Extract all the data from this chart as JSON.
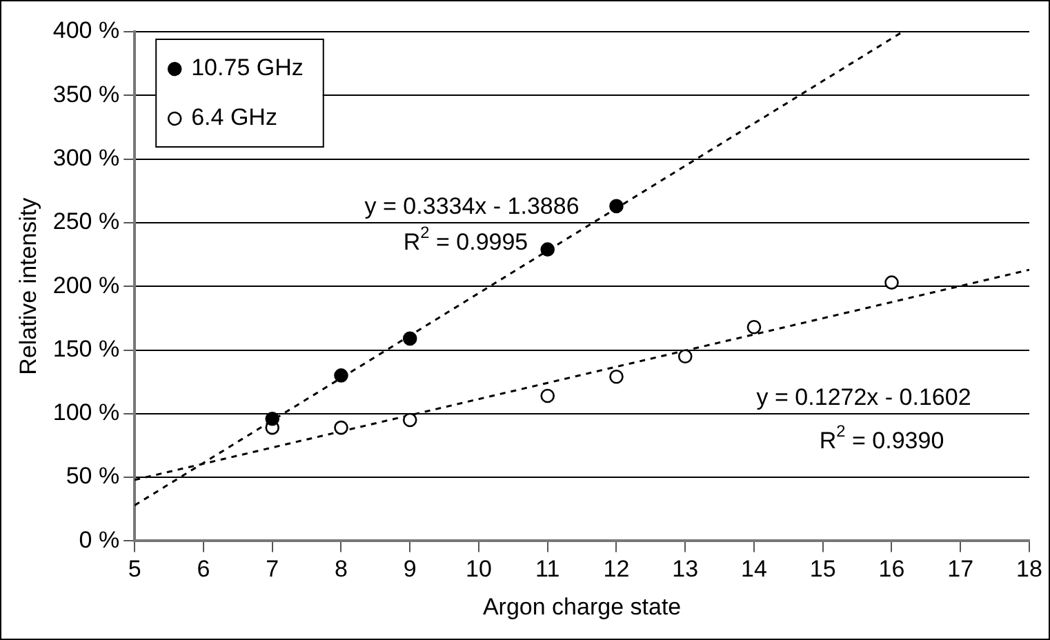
{
  "chart_data": {
    "type": "scatter",
    "xlabel": "Argon charge state",
    "ylabel": "Relative intensity",
    "series": [
      {
        "name": "10.75 GHz",
        "color": "#000000",
        "x": [
          7,
          8,
          9,
          11,
          12
        ],
        "values": [
          96,
          130,
          159,
          229,
          263
        ],
        "marker": "circle"
      },
      {
        "name": "6.4 GHz",
        "x": [
          7,
          8,
          9,
          11,
          12,
          13,
          14,
          16
        ],
        "values": [
          89,
          89,
          95,
          114,
          129,
          145,
          168,
          203
        ],
        "marker": "circle",
        "color": "#ffffff"
      },
      {
        "type": "line",
        "color": "#000000",
        "x": [
          5,
          16.16
        ],
        "values": [
          28,
          400
        ],
        "line_style": "dashed",
        "marker": "none"
      },
      {
        "type": "line",
        "color": "#000000",
        "x": [
          5,
          18
        ],
        "values": [
          48,
          213
        ],
        "line_style": "dashed",
        "marker": "none"
      }
    ],
    "xlim": [
      5,
      18
    ],
    "xticks": [
      5,
      6,
      7,
      8,
      9,
      10,
      11,
      12,
      13,
      14,
      15,
      16,
      17,
      18
    ],
    "ylim": [
      0,
      400
    ],
    "yticks": [
      {
        "value": 0,
        "label": "0 %"
      },
      {
        "value": 50,
        "label": "50 %"
      },
      {
        "value": 100,
        "label": "100 %"
      },
      {
        "value": 150,
        "label": "150 %"
      },
      {
        "value": 200,
        "label": "200 %"
      },
      {
        "value": 250,
        "label": "250 %"
      },
      {
        "value": 300,
        "label": "300 %"
      },
      {
        "value": 350,
        "label": "350 %"
      },
      {
        "value": 400,
        "label": "400 %"
      }
    ],
    "grid": "y",
    "legend": "top left",
    "annotations": [
      "y = 0.3334x - 1.3886",
      "R$^{2}$ = 0.9995",
      "y = 0.1272x - 0.1602",
      "R$^{2}$ = 0.9390"
    ]
  }
}
